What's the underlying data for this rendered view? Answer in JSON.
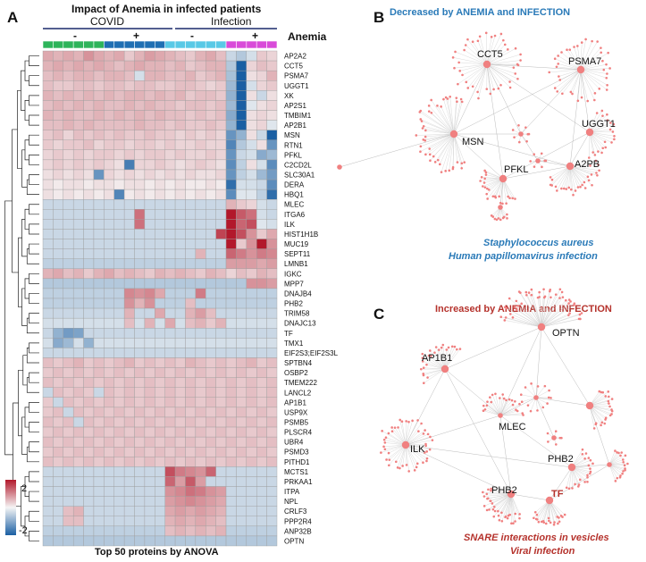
{
  "panels": {
    "a": "A",
    "b": "B",
    "c": "C"
  },
  "heatmap": {
    "title": "Impact of Anemia in infected patients",
    "group_left": "COVID",
    "group_right": "Infection",
    "anemia_label": "Anemia",
    "signs": [
      "-",
      "+",
      "-",
      "+"
    ],
    "footer": "Top 50 proteins by ANOVA",
    "legend_max": "2",
    "legend_min": "-2",
    "colors": {
      "covid_neg": "#2db45a",
      "covid_pos": "#1f6fb3",
      "inf_neg": "#59c9e6",
      "inf_pos": "#d94bd9"
    }
  },
  "chart_data": {
    "type": "heatmap",
    "title": "Impact of Anemia in infected patients",
    "columns": [
      "COVID -",
      "COVID -",
      "COVID -",
      "COVID -",
      "COVID -",
      "COVID -",
      "COVID +",
      "COVID +",
      "COVID +",
      "COVID +",
      "COVID +",
      "COVID +",
      "Infection -",
      "Infection -",
      "Infection -",
      "Infection -",
      "Infection -",
      "Infection -",
      "Infection +",
      "Infection +",
      "Infection +",
      "Infection +",
      "Infection +"
    ],
    "rows": [
      "AP2A2",
      "CCT5",
      "PSMA7",
      "UGGT1",
      "XK",
      "AP2S1",
      "TMBIM1",
      "AP2B1",
      "MSN",
      "RTN1",
      "PFKL",
      "C2CD2L",
      "SLC30A1",
      "DERA",
      "HBQ1",
      "MLEC",
      "ITGA6",
      "ILK",
      "HIST1H1B",
      "MUC19",
      "SEPT11",
      "LMNB1",
      "IGKC",
      "MPP7",
      "DNAJB4",
      "PHB2",
      "TRIM58",
      "DNAJC13",
      "TF",
      "TMX1",
      "EIF2S3;EIF2S3L",
      "SPTBN4",
      "OSBP2",
      "TMEM222",
      "LANCL2",
      "AP1B1",
      "USP9X",
      "PSMB5",
      "PLSCR4",
      "UBR4",
      "PSMD3",
      "PITHD1",
      "MCTS1",
      "PRKAA1",
      "ITPA",
      "NPL",
      "CRLF3",
      "PPP2R4",
      "ANP32B",
      "OPTN"
    ],
    "values": [
      [
        0.7,
        0.6,
        0.7,
        0.6,
        0.9,
        0.7,
        0.6,
        0.7,
        0.4,
        0.6,
        0.8,
        0.7,
        0.6,
        0.5,
        0.4,
        0.6,
        0.7,
        0.5,
        -0.4,
        -0.6,
        -0.3,
        0.4,
        0.3
      ],
      [
        0.6,
        0.7,
        0.6,
        0.7,
        0.6,
        0.7,
        0.6,
        0.5,
        0.6,
        0.7,
        0.6,
        0.6,
        0.5,
        0.6,
        0.4,
        0.5,
        0.6,
        0.6,
        -0.6,
        -2.6,
        0.3,
        0.5,
        0.4
      ],
      [
        0.5,
        0.6,
        0.5,
        0.6,
        0.6,
        0.5,
        0.6,
        0.6,
        0.5,
        -0.3,
        0.6,
        0.6,
        0.5,
        0.5,
        0.6,
        0.4,
        0.5,
        0.6,
        -0.7,
        -2.6,
        0.2,
        0.3,
        0.6
      ],
      [
        0.5,
        0.4,
        0.4,
        0.5,
        0.5,
        0.4,
        0.5,
        0.5,
        0.4,
        0.5,
        0.5,
        0.4,
        0.4,
        0.5,
        0.5,
        0.4,
        0.3,
        0.4,
        -0.8,
        -2.7,
        -0.3,
        0.3,
        0.4
      ],
      [
        0.6,
        0.5,
        0.6,
        0.5,
        0.6,
        0.5,
        0.6,
        0.5,
        0.6,
        0.6,
        0.5,
        0.6,
        0.5,
        0.6,
        0.4,
        0.5,
        0.5,
        0.4,
        -0.9,
        -2.9,
        0.2,
        -0.4,
        0.2
      ],
      [
        0.5,
        0.6,
        0.5,
        0.6,
        0.5,
        0.6,
        0.5,
        0.5,
        0.6,
        0.5,
        0.6,
        0.5,
        0.5,
        0.4,
        0.5,
        0.5,
        0.4,
        0.5,
        -0.8,
        -3.0,
        -0.2,
        0.2,
        0.3
      ],
      [
        0.6,
        0.5,
        0.6,
        0.5,
        0.5,
        0.6,
        0.5,
        0.6,
        0.5,
        0.6,
        0.5,
        0.6,
        0.5,
        0.5,
        0.4,
        0.5,
        0.4,
        0.5,
        -1.0,
        -3.0,
        0.2,
        0.3,
        0.2
      ],
      [
        0.5,
        0.5,
        0.6,
        0.5,
        0.6,
        0.5,
        0.5,
        0.5,
        0.5,
        0.6,
        0.5,
        0.5,
        0.4,
        0.5,
        0.4,
        0.4,
        0.5,
        0.4,
        -0.9,
        -3.0,
        0.2,
        0.3,
        -0.2
      ],
      [
        0.4,
        0.5,
        0.3,
        0.5,
        0.4,
        0.5,
        0.4,
        0.5,
        0.4,
        0.4,
        0.5,
        0.4,
        0.4,
        0.3,
        0.4,
        0.3,
        0.4,
        0.3,
        -1.3,
        -0.9,
        0.2,
        -0.4,
        -2.9
      ],
      [
        0.4,
        0.3,
        0.4,
        0.4,
        0.5,
        0.3,
        0.4,
        0.4,
        0.3,
        0.4,
        0.4,
        0.3,
        0.4,
        0.3,
        0.3,
        0.4,
        0.3,
        0.3,
        -1.5,
        -0.6,
        -0.3,
        0.2,
        -1.3
      ],
      [
        0.3,
        0.4,
        0.3,
        0.4,
        0.3,
        0.4,
        0.4,
        0.3,
        0.4,
        0.3,
        0.4,
        0.4,
        0.3,
        0.4,
        0.3,
        0.3,
        0.4,
        0.3,
        -1.3,
        -0.4,
        -0.3,
        -1.0,
        -0.8
      ],
      [
        0.3,
        0.4,
        0.3,
        0.4,
        0.3,
        0.4,
        0.3,
        0.2,
        -1.6,
        0.3,
        0.3,
        0.4,
        0.3,
        0.2,
        0.3,
        0.4,
        0.3,
        0.2,
        -1.4,
        -0.5,
        0.2,
        -0.3,
        -1.4
      ],
      [
        0.2,
        0.3,
        0.2,
        0.3,
        0.2,
        -1.3,
        0.3,
        0.2,
        0.3,
        0.2,
        0.3,
        0.2,
        0.3,
        0.2,
        0.3,
        0.2,
        0.2,
        0.3,
        -1.3,
        -0.5,
        -0.3,
        -0.8,
        -1.2
      ],
      [
        0.2,
        0.1,
        0.2,
        0.2,
        0.1,
        0.2,
        0.2,
        0.1,
        0.2,
        0.2,
        0.1,
        0.2,
        0.1,
        0.2,
        0.1,
        0.1,
        0.2,
        0.1,
        -1.8,
        -0.3,
        -0.3,
        -0.4,
        -1.4
      ],
      [
        0.2,
        0.1,
        0.2,
        0.1,
        0.2,
        0.1,
        0.2,
        -1.5,
        0.1,
        0.2,
        0.1,
        0.2,
        0.1,
        0.2,
        0.1,
        0.2,
        0.1,
        0.2,
        -1.4,
        -0.2,
        -0.2,
        -0.5,
        -1.8
      ],
      [
        -0.4,
        -0.4,
        -0.4,
        -0.4,
        -0.4,
        -0.4,
        -0.4,
        -0.4,
        -0.4,
        -0.4,
        -0.4,
        -0.4,
        -0.4,
        -0.4,
        -0.4,
        -0.4,
        -0.4,
        -0.4,
        0.6,
        0.4,
        0.3,
        -0.3,
        -0.4
      ],
      [
        -0.4,
        -0.4,
        -0.4,
        -0.4,
        -0.4,
        -0.4,
        -0.4,
        -0.4,
        -0.4,
        1.2,
        -0.4,
        -0.4,
        -0.4,
        -0.4,
        -0.4,
        -0.4,
        -0.4,
        -0.4,
        2.4,
        1.4,
        1.2,
        -0.3,
        -0.4
      ],
      [
        -0.4,
        -0.4,
        -0.4,
        -0.4,
        -0.4,
        -0.4,
        -0.4,
        -0.4,
        -0.4,
        1.2,
        -0.4,
        -0.4,
        -0.4,
        -0.4,
        -0.4,
        -0.4,
        -0.4,
        -0.4,
        2.3,
        1.3,
        1.5,
        -0.2,
        -0.3
      ],
      [
        -0.4,
        -0.4,
        -0.4,
        -0.4,
        -0.4,
        -0.4,
        -0.4,
        -0.4,
        -0.4,
        -0.4,
        -0.4,
        -0.4,
        -0.4,
        -0.4,
        -0.4,
        -0.4,
        -0.4,
        1.6,
        2.0,
        1.5,
        0.9,
        0.4,
        0.7
      ],
      [
        -0.4,
        -0.4,
        -0.4,
        -0.4,
        -0.4,
        -0.4,
        -0.4,
        -0.4,
        -0.4,
        -0.4,
        -0.4,
        -0.4,
        -0.4,
        -0.4,
        -0.4,
        -0.4,
        -0.4,
        -0.4,
        2.1,
        0.4,
        0.9,
        2.8,
        0.9
      ],
      [
        -0.4,
        -0.4,
        -0.4,
        -0.4,
        -0.4,
        -0.4,
        -0.4,
        -0.4,
        -0.4,
        -0.4,
        -0.4,
        -0.4,
        -0.4,
        -0.4,
        -0.4,
        0.6,
        -0.4,
        -0.4,
        1.3,
        1.1,
        0.9,
        1.1,
        1.0
      ],
      [
        -0.5,
        -0.5,
        -0.5,
        -0.5,
        -0.5,
        -0.5,
        -0.5,
        -0.5,
        -0.5,
        -0.5,
        -0.5,
        -0.5,
        -0.5,
        -0.5,
        -0.5,
        -0.5,
        -0.5,
        -0.5,
        0.8,
        0.8,
        0.8,
        0.7,
        0.8
      ],
      [
        0.6,
        0.7,
        0.5,
        0.6,
        0.4,
        0.6,
        0.7,
        0.5,
        0.6,
        0.5,
        0.4,
        0.6,
        0.5,
        0.6,
        0.5,
        0.4,
        0.6,
        0.5,
        0.3,
        0.5,
        0.4,
        0.6,
        0.5
      ],
      [
        -0.6,
        -0.6,
        -0.6,
        -0.6,
        -0.6,
        -0.6,
        -0.6,
        -0.6,
        -0.6,
        -0.6,
        -0.6,
        -0.6,
        -0.6,
        -0.6,
        -0.6,
        -0.6,
        -0.6,
        -0.6,
        -0.6,
        -0.6,
        0.9,
        0.9,
        0.8
      ],
      [
        -0.5,
        -0.5,
        -0.5,
        -0.5,
        -0.5,
        -0.5,
        -0.5,
        -0.5,
        1.0,
        0.9,
        1.0,
        0.7,
        -0.5,
        -0.5,
        -0.5,
        1.1,
        -0.5,
        -0.5,
        -0.5,
        -0.5,
        -0.5,
        -0.5,
        -0.5
      ],
      [
        -0.5,
        -0.5,
        -0.5,
        -0.5,
        -0.5,
        -0.5,
        -0.5,
        -0.5,
        0.9,
        0.6,
        0.9,
        -0.5,
        -0.5,
        -0.5,
        0.5,
        -0.5,
        -0.5,
        -0.5,
        -0.5,
        -0.5,
        -0.5,
        -0.5,
        -0.5
      ],
      [
        -0.4,
        -0.4,
        -0.4,
        -0.4,
        -0.4,
        -0.4,
        -0.4,
        -0.4,
        0.6,
        -0.4,
        -0.4,
        0.7,
        -0.4,
        -0.4,
        0.6,
        0.8,
        0.5,
        -0.4,
        -0.4,
        -0.4,
        -0.4,
        -0.4,
        -0.4
      ],
      [
        -0.3,
        -0.3,
        -0.3,
        -0.3,
        -0.3,
        -0.3,
        -0.3,
        -0.3,
        0.5,
        -0.3,
        0.6,
        -0.3,
        0.7,
        -0.3,
        0.5,
        0.6,
        0.4,
        0.6,
        -0.3,
        -0.3,
        -0.3,
        -0.3,
        -0.3
      ],
      [
        -0.4,
        -0.9,
        -1.2,
        -1.1,
        -0.4,
        -0.4,
        -0.4,
        -0.4,
        -0.4,
        -0.4,
        -0.4,
        -0.4,
        -0.4,
        -0.4,
        -0.4,
        -0.4,
        -0.4,
        -0.4,
        -0.4,
        -0.4,
        -0.4,
        -0.4,
        -0.4
      ],
      [
        -0.3,
        -1.0,
        -0.8,
        -0.3,
        -0.9,
        -0.3,
        -0.3,
        -0.3,
        -0.3,
        -0.3,
        -0.3,
        -0.3,
        -0.3,
        -0.3,
        -0.3,
        -0.3,
        -0.3,
        -0.3,
        -0.3,
        -0.3,
        -0.3,
        -0.3,
        -0.3
      ],
      [
        -0.4,
        -0.4,
        -0.4,
        -0.4,
        -0.4,
        -0.4,
        -0.4,
        -0.4,
        -0.4,
        -0.4,
        -0.4,
        -0.4,
        -0.4,
        -0.4,
        -0.4,
        -0.4,
        -0.4,
        -0.4,
        -0.4,
        -0.4,
        -0.4,
        -0.4,
        -0.4
      ],
      [
        0.5,
        0.4,
        0.5,
        0.6,
        0.4,
        0.5,
        0.4,
        0.5,
        0.6,
        0.4,
        0.5,
        0.4,
        0.5,
        0.4,
        0.6,
        0.5,
        0.4,
        0.5,
        0.4,
        0.5,
        0.6,
        0.4,
        0.5
      ],
      [
        0.4,
        0.5,
        0.4,
        0.5,
        0.4,
        0.5,
        0.4,
        0.5,
        0.4,
        0.5,
        0.4,
        0.5,
        0.4,
        0.5,
        0.4,
        0.5,
        0.4,
        0.5,
        0.4,
        0.5,
        0.4,
        0.5,
        0.4
      ],
      [
        0.5,
        0.4,
        0.5,
        0.4,
        0.5,
        0.4,
        0.5,
        0.4,
        0.5,
        0.4,
        0.5,
        0.4,
        0.5,
        0.4,
        0.5,
        0.4,
        0.5,
        0.4,
        0.5,
        0.4,
        0.5,
        0.4,
        0.5
      ],
      [
        -0.4,
        0.5,
        0.4,
        0.5,
        0.4,
        -0.4,
        0.5,
        0.4,
        0.5,
        0.4,
        0.5,
        0.4,
        0.5,
        0.4,
        0.5,
        0.4,
        0.5,
        0.4,
        0.5,
        0.4,
        0.5,
        0.4,
        0.5
      ],
      [
        0.4,
        -0.4,
        0.5,
        0.4,
        0.5,
        0.4,
        0.5,
        0.4,
        0.5,
        0.4,
        0.5,
        0.4,
        0.5,
        0.4,
        0.5,
        0.4,
        0.5,
        0.4,
        0.5,
        0.4,
        0.5,
        0.4,
        0.5
      ],
      [
        0.4,
        0.5,
        -0.4,
        0.5,
        0.4,
        0.5,
        0.4,
        0.5,
        0.4,
        0.5,
        0.4,
        0.5,
        0.4,
        0.5,
        0.4,
        0.5,
        0.4,
        0.5,
        0.4,
        0.5,
        0.4,
        0.5,
        0.4
      ],
      [
        0.5,
        0.4,
        0.5,
        -0.4,
        0.5,
        0.4,
        0.5,
        0.4,
        0.5,
        0.4,
        0.5,
        0.4,
        0.5,
        0.4,
        0.5,
        0.4,
        0.5,
        0.4,
        0.5,
        0.4,
        0.5,
        0.4,
        0.5
      ],
      [
        0.4,
        0.5,
        0.4,
        0.5,
        0.4,
        0.5,
        0.4,
        0.5,
        0.4,
        0.5,
        0.4,
        0.5,
        0.4,
        0.5,
        0.4,
        0.5,
        0.4,
        0.5,
        0.4,
        0.5,
        0.4,
        0.5,
        0.4
      ],
      [
        0.5,
        0.4,
        0.5,
        0.4,
        0.5,
        0.4,
        0.5,
        0.4,
        0.5,
        0.4,
        0.5,
        0.4,
        0.5,
        0.4,
        0.5,
        0.4,
        0.5,
        0.4,
        0.5,
        0.4,
        0.5,
        0.4,
        0.5
      ],
      [
        0.4,
        0.5,
        0.4,
        0.5,
        0.4,
        0.5,
        0.4,
        0.5,
        0.4,
        0.5,
        0.4,
        0.5,
        0.4,
        0.5,
        0.4,
        0.5,
        0.4,
        0.5,
        0.4,
        0.5,
        0.4,
        0.5,
        0.4
      ],
      [
        0.5,
        0.4,
        0.5,
        0.4,
        0.5,
        0.4,
        0.5,
        0.4,
        0.5,
        0.4,
        0.5,
        0.4,
        0.5,
        0.4,
        0.5,
        0.4,
        0.5,
        0.4,
        0.5,
        0.4,
        0.5,
        0.4,
        0.5
      ],
      [
        -0.4,
        -0.4,
        -0.4,
        -0.4,
        -0.4,
        -0.4,
        -0.4,
        -0.4,
        -0.4,
        -0.4,
        -0.4,
        -0.4,
        1.5,
        1.1,
        1.0,
        0.9,
        1.3,
        -0.4,
        -0.4,
        -0.4,
        -0.4,
        -0.4,
        -0.4
      ],
      [
        -0.4,
        -0.4,
        -0.4,
        -0.4,
        -0.4,
        -0.4,
        -0.4,
        -0.4,
        -0.4,
        -0.4,
        -0.4,
        -0.4,
        1.3,
        0.8,
        1.4,
        0.8,
        -0.4,
        -0.4,
        -0.4,
        -0.4,
        -0.4,
        -0.4,
        -0.4
      ],
      [
        -0.4,
        -0.4,
        -0.4,
        -0.4,
        -0.4,
        -0.4,
        -0.4,
        -0.4,
        -0.4,
        -0.4,
        -0.4,
        -0.4,
        0.9,
        1.0,
        1.2,
        1.1,
        0.9,
        0.8,
        -0.4,
        -0.4,
        -0.4,
        -0.4,
        -0.4
      ],
      [
        -0.4,
        -0.4,
        -0.4,
        -0.4,
        -0.4,
        -0.4,
        -0.4,
        -0.4,
        -0.4,
        -0.4,
        -0.4,
        -0.4,
        0.8,
        0.9,
        1.0,
        0.9,
        0.8,
        0.7,
        -0.4,
        -0.4,
        -0.4,
        -0.4,
        -0.4
      ],
      [
        -0.4,
        -0.4,
        0.5,
        0.6,
        -0.4,
        -0.4,
        -0.4,
        -0.4,
        -0.4,
        -0.4,
        -0.4,
        -0.4,
        0.7,
        0.8,
        0.7,
        0.8,
        0.7,
        0.6,
        -0.4,
        -0.4,
        -0.4,
        -0.4,
        -0.4
      ],
      [
        -0.4,
        -0.4,
        0.5,
        0.5,
        -0.4,
        -0.4,
        -0.4,
        -0.4,
        -0.4,
        -0.4,
        -0.4,
        -0.4,
        0.6,
        0.7,
        0.6,
        0.7,
        0.6,
        0.5,
        -0.4,
        -0.4,
        -0.4,
        -0.4,
        -0.4
      ],
      [
        -0.5,
        -0.5,
        -0.5,
        -0.5,
        -0.5,
        -0.5,
        -0.5,
        -0.5,
        -0.5,
        -0.5,
        -0.5,
        -0.5,
        0.5,
        0.6,
        0.5,
        0.6,
        0.5,
        0.6,
        -0.5,
        -0.5,
        -0.5,
        -0.5,
        -0.5
      ],
      [
        -0.6,
        -0.6,
        -0.6,
        -0.6,
        -0.6,
        -0.6,
        -0.6,
        -0.6,
        -0.6,
        -0.6,
        -0.6,
        -0.6,
        -0.6,
        -0.6,
        -0.6,
        -0.6,
        -0.6,
        -0.6,
        -0.6,
        -0.6,
        -0.6,
        -0.6,
        -0.6
      ]
    ],
    "colorscale": [
      "#1a5fa3",
      "#f5f5f5",
      "#b2182b"
    ],
    "vmin": -2,
    "vmax": 2
  },
  "network_b": {
    "title": "Decreased by ANEMIA and INFECTION",
    "pathway_1": "Staphylococcus aureus",
    "pathway_2": "Human papillomavirus infection",
    "node_labels": [
      "CCT5",
      "PSMA7",
      "UGGT1",
      "MSN",
      "PFKL",
      "A2PB"
    ],
    "node_color": "#f08080"
  },
  "network_c": {
    "title": "Increased by ANEMIA and INFECTION",
    "pathway_1": "SNARE interactions in vesicles",
    "pathway_2": "Viral infection",
    "node_labels": [
      "OPTN",
      "AP1B1",
      "MLEC",
      "ILK",
      "PHB2",
      "PHB2",
      "TF"
    ],
    "node_color": "#f08080"
  }
}
